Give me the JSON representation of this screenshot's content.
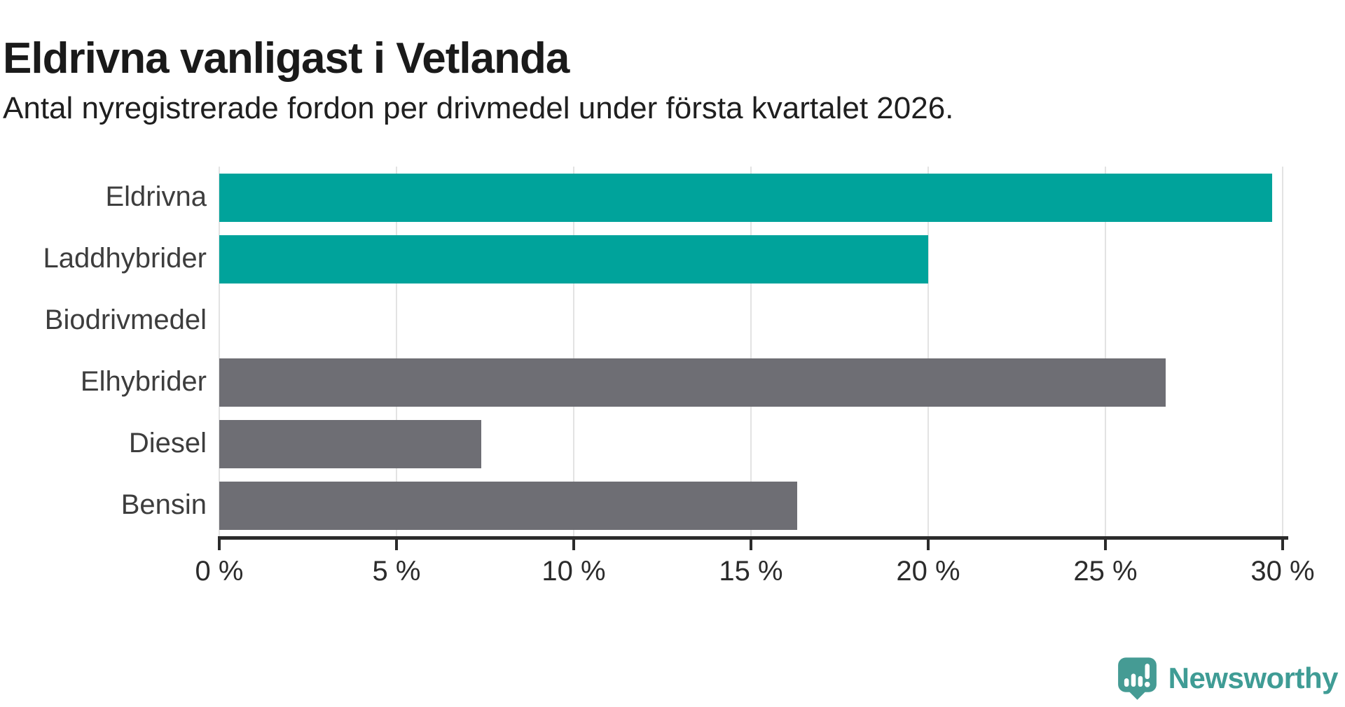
{
  "header": {
    "title": "Eldrivna vanligast i Vetlanda",
    "subtitle": "Antal nyregistrerade fordon per drivmedel under första kvartalet 2026."
  },
  "chart_data": {
    "type": "bar",
    "orientation": "horizontal",
    "title": "Eldrivna vanligast i Vetlanda",
    "subtitle": "Antal nyregistrerade fordon per drivmedel under första kvartalet 2026.",
    "categories": [
      "Eldrivna",
      "Laddhybrider",
      "Biodrivmedel",
      "Elhybrider",
      "Diesel",
      "Bensin"
    ],
    "values": [
      29.7,
      20.0,
      0,
      26.7,
      7.4,
      16.3
    ],
    "unit": "%",
    "bar_colors": [
      "#00a39b",
      "#00a39b",
      "#00a39b",
      "#6e6e74",
      "#6e6e74",
      "#6e6e74"
    ],
    "xlim": [
      0,
      30
    ],
    "x_ticks": [
      0,
      5,
      10,
      15,
      20,
      25,
      30
    ],
    "x_tick_labels": [
      "0 %",
      "5 %",
      "10 %",
      "15 %",
      "20 %",
      "25 %",
      "30 %"
    ],
    "grid": true,
    "legend": "none",
    "xlabel": "",
    "ylabel": ""
  },
  "footer": {
    "brand": "Newsworthy",
    "brand_color": "#3f9c95",
    "icon": "newsworthy-logo-icon"
  },
  "colors": {
    "accent_teal": "#00a39b",
    "neutral_gray": "#6e6e74",
    "axis": "#2b2b2b",
    "gridline": "#e3e3e3",
    "category_label": "#3d3d3d",
    "text": "#1a1a1a",
    "logo_teal": "#459b94"
  }
}
